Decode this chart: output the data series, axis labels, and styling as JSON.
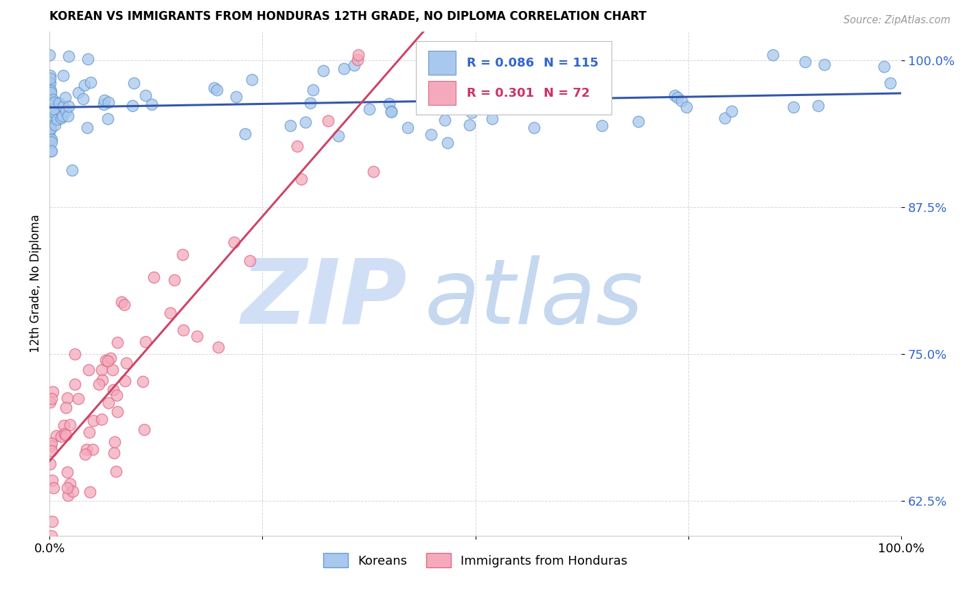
{
  "title": "KOREAN VS IMMIGRANTS FROM HONDURAS 12TH GRADE, NO DIPLOMA CORRELATION CHART",
  "source": "Source: ZipAtlas.com",
  "ylabel": "12th Grade, No Diploma",
  "xlim": [
    0.0,
    1.0
  ],
  "ylim": [
    0.595,
    1.025
  ],
  "ytick_vals": [
    0.625,
    0.75,
    0.875,
    1.0
  ],
  "ytick_labels": [
    "62.5%",
    "75.0%",
    "87.5%",
    "100.0%"
  ],
  "xtick_vals": [
    0.0,
    0.25,
    0.5,
    0.75,
    1.0
  ],
  "xtick_labels": [
    "0.0%",
    "",
    "",
    "",
    "100.0%"
  ],
  "korean_color": "#A8C8EE",
  "honduras_color": "#F4AABB",
  "korean_edge": "#6699CC",
  "honduras_edge": "#DD6688",
  "trend_korean_color": "#3355AA",
  "trend_honduras_color": "#CC4466",
  "r_korean": 0.086,
  "n_korean": 115,
  "r_honduras": 0.301,
  "n_honduras": 72,
  "watermark_zip": "ZIP",
  "watermark_atlas": "atlas",
  "watermark_color": "#D0DFF5",
  "legend_korean_r": "R = 0.086",
  "legend_korean_n": "N = 115",
  "legend_honduras_r": "R = 0.301",
  "legend_honduras_n": "N = 72",
  "legend_color_korean": "#3366CC",
  "legend_color_honduras": "#CC3366"
}
